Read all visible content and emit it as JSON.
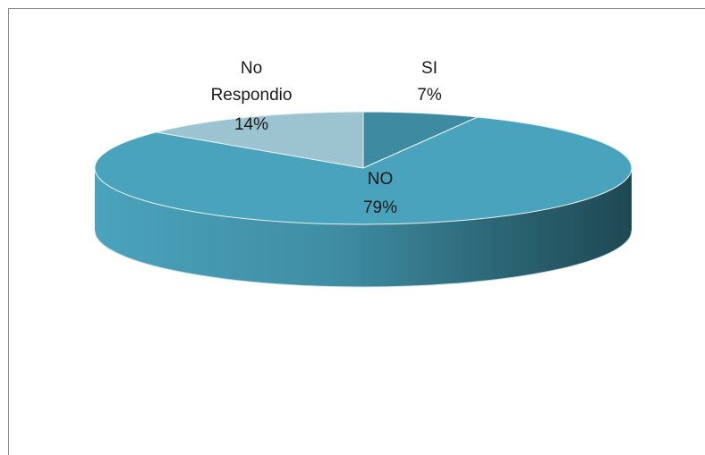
{
  "chart_data": {
    "type": "pie",
    "style": "3d",
    "title": "",
    "slices": [
      {
        "label": "SI",
        "value": 7,
        "percent_label": "7%",
        "color": "#3e8aa1"
      },
      {
        "label": "NO",
        "value": 79,
        "percent_label": "79%",
        "color": "#4aa3bc"
      },
      {
        "label": "No Respondio",
        "value": 14,
        "percent_label": "14%",
        "color": "#9cc4d0"
      }
    ],
    "legend": "none",
    "data_labels": "category and percent"
  }
}
